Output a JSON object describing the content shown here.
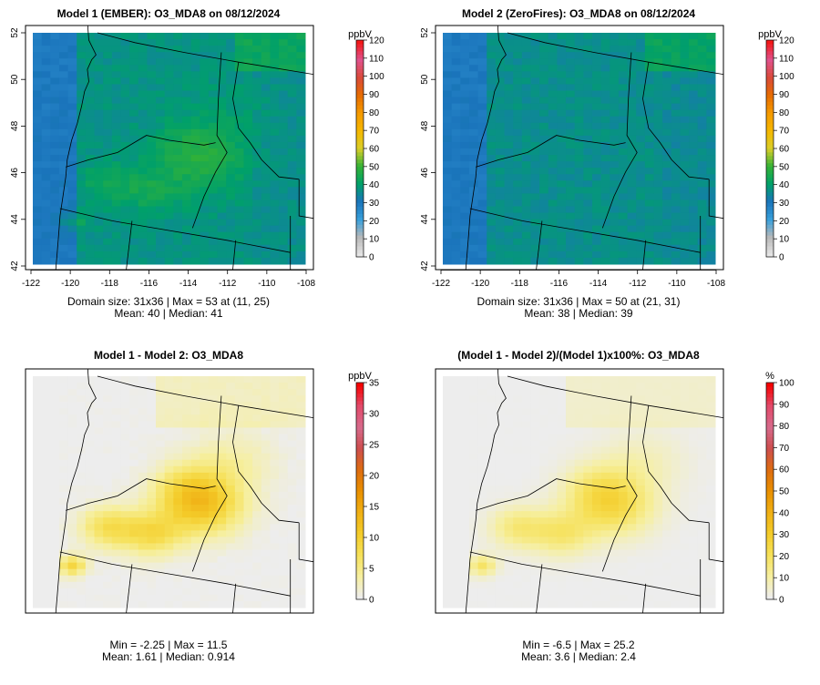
{
  "colors": {
    "frame": "#000000",
    "abs_scale": [
      "#E6E6E6",
      "#B8B8B8",
      "#3AA0DB",
      "#1A74BB",
      "#00A06A",
      "#33B236",
      "#D9CE2A",
      "#F5B800",
      "#F59A00",
      "#E66C00",
      "#D94A3A",
      "#E0528C",
      "#F21818"
    ],
    "diff_scale": [
      "#EDEDED",
      "#F6EFA0",
      "#F6E15A",
      "#F4CC2A",
      "#F0B015",
      "#E99000",
      "#DD6C10",
      "#CD4E4E",
      "#D66A8C",
      "#E24A6A",
      "#F50000"
    ]
  },
  "panels": [
    {
      "id": "p1",
      "title": "Model 1 (EMBER): O3_MDA8 on 08/12/2024",
      "kind": "abs",
      "show_axes": true,
      "lon_ticks": [
        "-122",
        "-120",
        "-118",
        "-116",
        "-114",
        "-112",
        "-110",
        "-108"
      ],
      "lat_ticks": [
        "42",
        "44",
        "46",
        "48",
        "50",
        "52"
      ],
      "colorbar": {
        "unit": "ppbV",
        "max": 120,
        "ticks": [
          "0",
          "10",
          "20",
          "30",
          "40",
          "50",
          "60",
          "70",
          "80",
          "90",
          "100",
          "110",
          "120"
        ]
      },
      "stats": [
        "Domain size: 31x36 | Max = 53 at (11, 25)",
        "Mean: 40 |  Median: 41"
      ],
      "field": {
        "base": 37,
        "fire_boost": 5,
        "coast_low": 29
      }
    },
    {
      "id": "p2",
      "title": "Model 2 (ZeroFires): O3_MDA8 on 08/12/2024",
      "kind": "abs",
      "show_axes": true,
      "lon_ticks": [
        "-122",
        "-120",
        "-118",
        "-116",
        "-114",
        "-112",
        "-110",
        "-108"
      ],
      "lat_ticks": [
        "42",
        "44",
        "46",
        "48",
        "50",
        "52"
      ],
      "colorbar": {
        "unit": "ppbV",
        "max": 120,
        "ticks": [
          "0",
          "10",
          "20",
          "30",
          "40",
          "50",
          "60",
          "70",
          "80",
          "90",
          "100",
          "110",
          "120"
        ]
      },
      "stats": [
        "Domain size: 31x36 | Max = 50 at (21, 31)",
        "Mean: 38 |  Median: 39"
      ],
      "field": {
        "base": 36,
        "fire_boost": 0,
        "coast_low": 29
      }
    },
    {
      "id": "p3",
      "title": "Model 1 - Model 2: O3_MDA8",
      "kind": "diff",
      "show_axes": false,
      "colorbar": {
        "unit": "ppbV",
        "max": 35,
        "ticks": [
          "0",
          "5",
          "10",
          "15",
          "20",
          "25",
          "30",
          "35"
        ]
      },
      "stats": [
        "Min = -2.25 | Max = 11.5",
        "Mean: 1.61 |  Median: 0.914"
      ],
      "field": {
        "scale": 1.0
      }
    },
    {
      "id": "p4",
      "title": "(Model 1 - Model 2)/(Model 1)x100%: O3_MDA8",
      "kind": "diff",
      "show_axes": false,
      "colorbar": {
        "unit": "%",
        "max": 100,
        "ticks": [
          "0",
          "10",
          "20",
          "30",
          "40",
          "50",
          "60",
          "70",
          "80",
          "90",
          "100"
        ]
      },
      "stats": [
        "Min = -6.5 | Max = 25.2",
        "Mean: 3.6 |  Median: 2.4"
      ],
      "field": {
        "scale": 2.1
      }
    }
  ]
}
